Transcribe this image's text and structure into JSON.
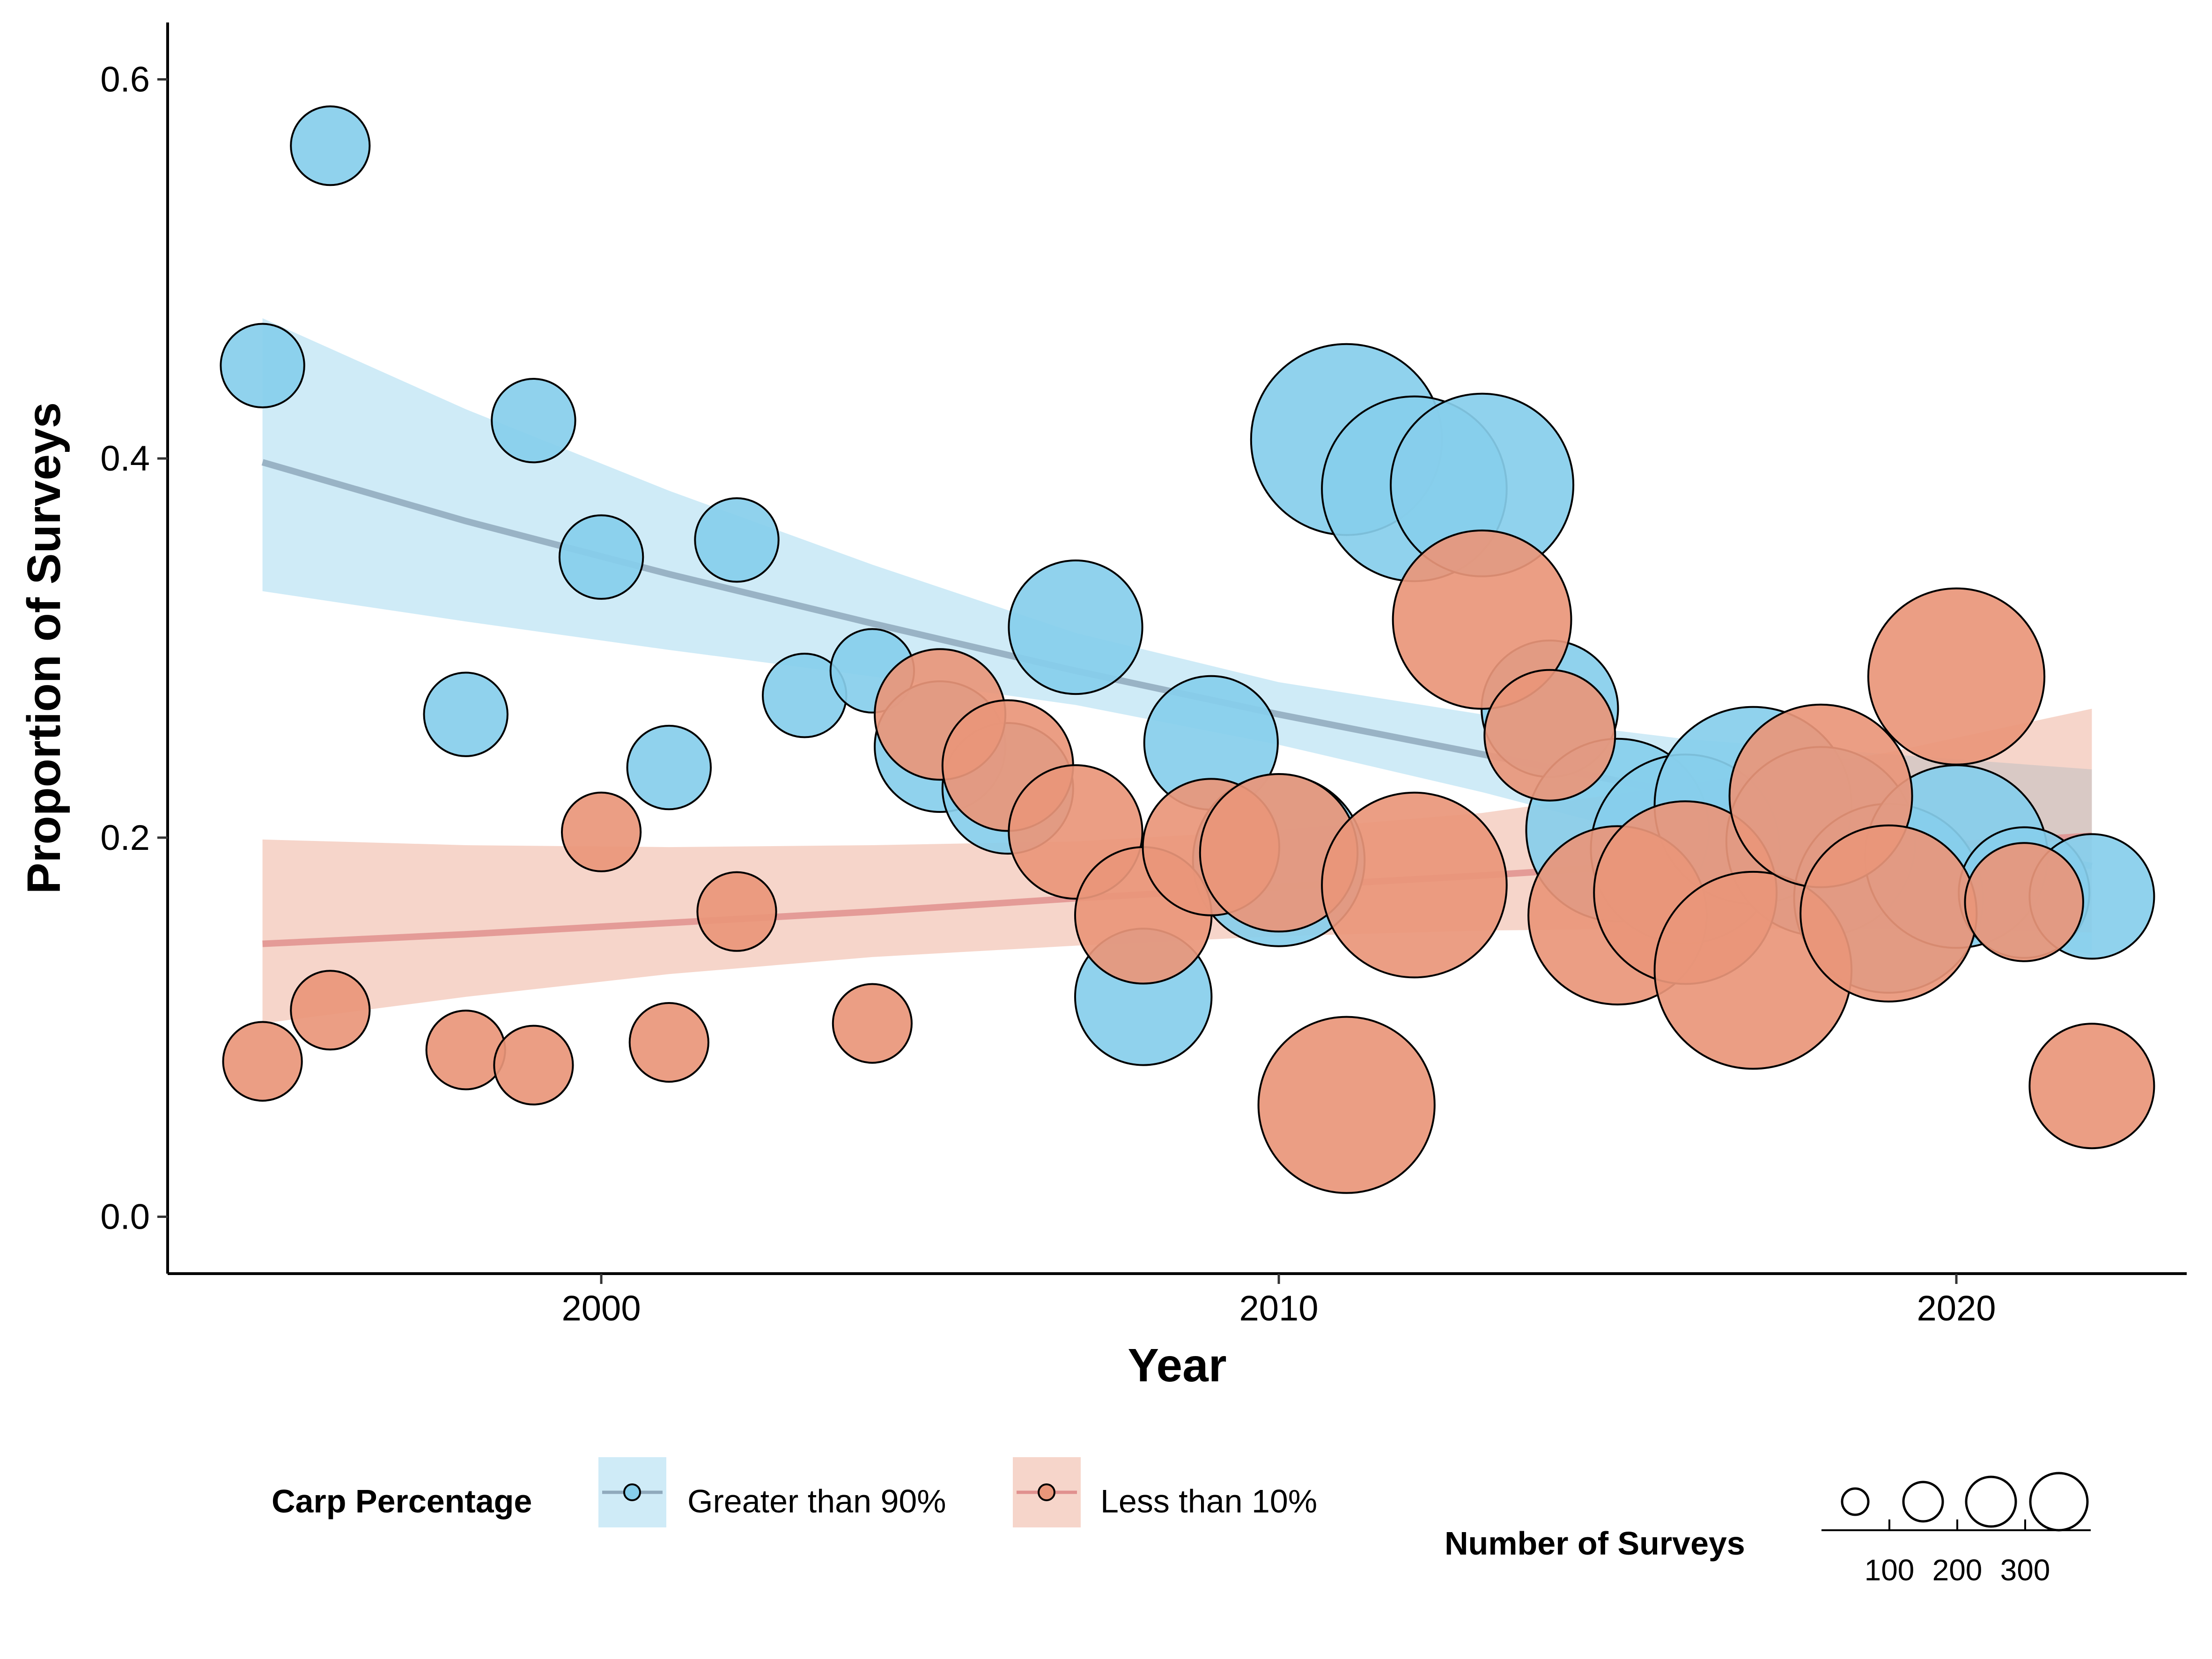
{
  "chart_data": {
    "type": "scatter",
    "xlabel": "Year",
    "ylabel": "Proportion of Surveys",
    "xlim": [
      1993.6,
      2023.4
    ],
    "ylim": [
      -0.03,
      0.63
    ],
    "x_ticks": [
      2000,
      2010,
      2020
    ],
    "y_ticks": [
      0.0,
      0.2,
      0.4,
      0.6
    ],
    "y_tick_labels": [
      "0.0",
      "0.2",
      "0.4",
      "0.6"
    ],
    "grid": false,
    "legend": {
      "position": "bottom",
      "color_title": "Carp Percentage",
      "size_title": "Number of Surveys",
      "size_breaks": [
        100,
        200,
        300
      ]
    },
    "series": [
      {
        "name": "Greater than 90%",
        "color": "#87CEEB",
        "band_color": "#87CEEB",
        "line_color": "#8FA9BC",
        "points": [
          {
            "x": 1995,
            "y": 0.449,
            "n": 45
          },
          {
            "x": 1996,
            "y": 0.565,
            "n": 40
          },
          {
            "x": 1998,
            "y": 0.265,
            "n": 45
          },
          {
            "x": 1999,
            "y": 0.42,
            "n": 45
          },
          {
            "x": 2000,
            "y": 0.348,
            "n": 45
          },
          {
            "x": 2001,
            "y": 0.237,
            "n": 45
          },
          {
            "x": 2002,
            "y": 0.357,
            "n": 45
          },
          {
            "x": 2003,
            "y": 0.275,
            "n": 45
          },
          {
            "x": 2004,
            "y": 0.288,
            "n": 45
          },
          {
            "x": 2005,
            "y": 0.248,
            "n": 110
          },
          {
            "x": 2006,
            "y": 0.226,
            "n": 110
          },
          {
            "x": 2007,
            "y": 0.311,
            "n": 115
          },
          {
            "x": 2008,
            "y": 0.116,
            "n": 120
          },
          {
            "x": 2009,
            "y": 0.25,
            "n": 115
          },
          {
            "x": 2010,
            "y": 0.188,
            "n": 190
          },
          {
            "x": 2011,
            "y": 0.41,
            "n": 235
          },
          {
            "x": 2012,
            "y": 0.384,
            "n": 220
          },
          {
            "x": 2013,
            "y": 0.386,
            "n": 215
          },
          {
            "x": 2014,
            "y": 0.268,
            "n": 120
          },
          {
            "x": 2015,
            "y": 0.204,
            "n": 215
          },
          {
            "x": 2016,
            "y": 0.194,
            "n": 230
          },
          {
            "x": 2017,
            "y": 0.217,
            "n": 250
          },
          {
            "x": 2018,
            "y": 0.198,
            "n": 230
          },
          {
            "x": 2019,
            "y": 0.168,
            "n": 230
          },
          {
            "x": 2020,
            "y": 0.19,
            "n": 215
          },
          {
            "x": 2021,
            "y": 0.171,
            "n": 110
          },
          {
            "x": 2022,
            "y": 0.169,
            "n": 100
          }
        ],
        "trend": {
          "x": [
            1995,
            1998,
            2001,
            2004,
            2007,
            2010,
            2013,
            2016,
            2019,
            2022
          ],
          "fit": [
            0.398,
            0.367,
            0.339,
            0.313,
            0.288,
            0.265,
            0.244,
            0.223,
            0.204,
            0.185
          ],
          "lower": [
            0.33,
            0.314,
            0.299,
            0.285,
            0.27,
            0.249,
            0.224,
            0.196,
            0.167,
            0.138
          ],
          "upper": [
            0.474,
            0.426,
            0.383,
            0.344,
            0.308,
            0.282,
            0.265,
            0.252,
            0.244,
            0.236
          ]
        }
      },
      {
        "name": "Less than 10%",
        "color": "#E9967A",
        "band_color": "#E9967A",
        "line_color": "#E0908E",
        "points": [
          {
            "x": 1995,
            "y": 0.082,
            "n": 40
          },
          {
            "x": 1996,
            "y": 0.109,
            "n": 40
          },
          {
            "x": 1998,
            "y": 0.088,
            "n": 40
          },
          {
            "x": 1999,
            "y": 0.08,
            "n": 40
          },
          {
            "x": 2000,
            "y": 0.203,
            "n": 40
          },
          {
            "x": 2001,
            "y": 0.092,
            "n": 40
          },
          {
            "x": 2002,
            "y": 0.161,
            "n": 40
          },
          {
            "x": 2004,
            "y": 0.102,
            "n": 40
          },
          {
            "x": 2005,
            "y": 0.265,
            "n": 110
          },
          {
            "x": 2006,
            "y": 0.238,
            "n": 110
          },
          {
            "x": 2007,
            "y": 0.203,
            "n": 115
          },
          {
            "x": 2008,
            "y": 0.159,
            "n": 120
          },
          {
            "x": 2009,
            "y": 0.195,
            "n": 120
          },
          {
            "x": 2010,
            "y": 0.192,
            "n": 160
          },
          {
            "x": 2011,
            "y": 0.059,
            "n": 200
          },
          {
            "x": 2012,
            "y": 0.175,
            "n": 220
          },
          {
            "x": 2013,
            "y": 0.315,
            "n": 205
          },
          {
            "x": 2014,
            "y": 0.254,
            "n": 110
          },
          {
            "x": 2015,
            "y": 0.159,
            "n": 205
          },
          {
            "x": 2016,
            "y": 0.171,
            "n": 215
          },
          {
            "x": 2017,
            "y": 0.13,
            "n": 250
          },
          {
            "x": 2018,
            "y": 0.222,
            "n": 215
          },
          {
            "x": 2019,
            "y": 0.16,
            "n": 200
          },
          {
            "x": 2020,
            "y": 0.285,
            "n": 200
          },
          {
            "x": 2021,
            "y": 0.166,
            "n": 90
          },
          {
            "x": 2022,
            "y": 0.069,
            "n": 100
          }
        ],
        "trend": {
          "x": [
            1995,
            1998,
            2001,
            2004,
            2007,
            2010,
            2013,
            2016,
            2019,
            2022
          ],
          "fit": [
            0.144,
            0.149,
            0.155,
            0.161,
            0.168,
            0.174,
            0.18,
            0.187,
            0.194,
            0.201
          ],
          "lower": [
            0.102,
            0.116,
            0.128,
            0.137,
            0.143,
            0.148,
            0.151,
            0.152,
            0.152,
            0.15
          ],
          "upper": [
            0.199,
            0.196,
            0.195,
            0.196,
            0.198,
            0.204,
            0.213,
            0.228,
            0.245,
            0.268
          ]
        }
      }
    ]
  }
}
